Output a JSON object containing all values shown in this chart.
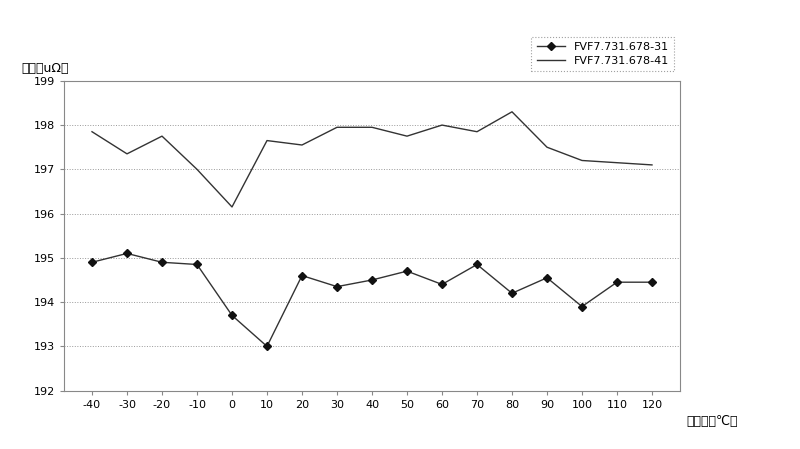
{
  "x_values": [
    -40,
    -30,
    -20,
    -10,
    0,
    10,
    20,
    30,
    40,
    50,
    60,
    70,
    80,
    90,
    100,
    110,
    120
  ],
  "series1_label": "FVF7.731.678-31",
  "series2_label": "FVF7.731.678-41",
  "series1_y": [
    194.9,
    195.1,
    194.9,
    194.85,
    193.7,
    193.0,
    194.6,
    194.35,
    194.5,
    194.7,
    194.4,
    194.85,
    194.2,
    194.55,
    193.9,
    194.45,
    194.45
  ],
  "series2_y": [
    197.85,
    197.35,
    197.75,
    197.0,
    196.15,
    197.65,
    197.55,
    197.95,
    197.95,
    197.75,
    198.0,
    197.85,
    198.3,
    197.5,
    197.2,
    197.15,
    197.1
  ],
  "ylabel": "阻値（uΩ）",
  "xlabel": "测试点（℃）",
  "ylim": [
    192,
    199
  ],
  "yticks": [
    192,
    193,
    194,
    195,
    196,
    197,
    198,
    199
  ],
  "grid_color": "#999999",
  "line_color": "#333333",
  "marker_color": "#111111",
  "bg_color": "#ffffff",
  "legend_fontsize": 8,
  "tick_fontsize": 8,
  "label_fontsize": 9
}
